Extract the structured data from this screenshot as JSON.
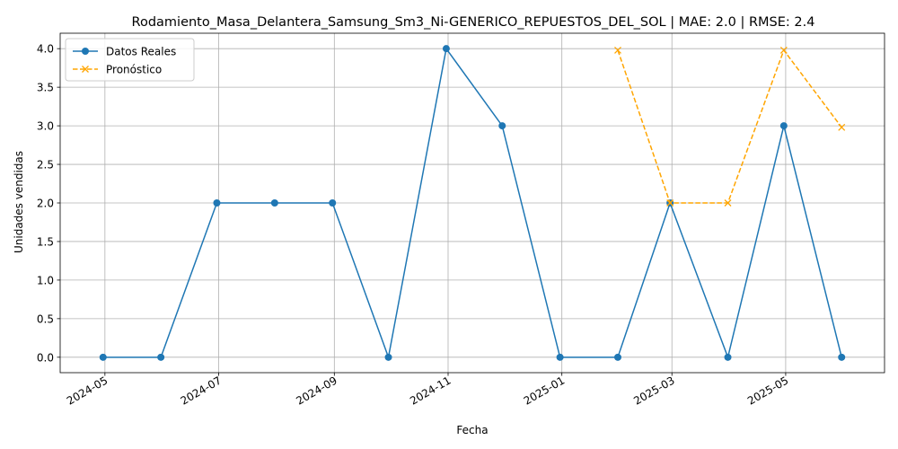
{
  "chart_data": {
    "type": "line",
    "title": "Rodamiento_Masa_Delantera_Samsung_Sm3_Ni-GENERICO_REPUESTOS_DEL_SOL | MAE: 2.0 | RMSE: 2.4",
    "xlabel": "Fecha",
    "ylabel": "Unidades vendidas",
    "xlim": [
      "2024-04-07",
      "2025-06-23"
    ],
    "ylim": [
      -0.2,
      4.2
    ],
    "grid": true,
    "legend_position": "top-left",
    "x_ticks": [
      "2024-05",
      "2024-07",
      "2024-09",
      "2024-11",
      "2025-01",
      "2025-03",
      "2025-05"
    ],
    "y_ticks": [
      "0.0",
      "0.5",
      "1.0",
      "1.5",
      "2.0",
      "2.5",
      "3.0",
      "3.5",
      "4.0"
    ],
    "series": [
      {
        "name": "Datos Reales",
        "color": "#1f77b4",
        "style": "solid",
        "marker": "circle",
        "x": [
          "2024-04-30",
          "2024-05-31",
          "2024-06-30",
          "2024-07-31",
          "2024-08-31",
          "2024-09-30",
          "2024-10-31",
          "2024-11-30",
          "2024-12-31",
          "2025-01-31",
          "2025-02-28",
          "2025-03-31",
          "2025-04-30",
          "2025-05-31"
        ],
        "values": [
          0,
          0,
          2,
          2,
          2,
          0,
          4,
          3,
          0,
          0,
          2,
          0,
          3,
          0
        ]
      },
      {
        "name": "Pronóstico",
        "color": "#ffa500",
        "style": "dashed",
        "marker": "x",
        "x": [
          "2025-01-31",
          "2025-02-28",
          "2025-03-31",
          "2025-04-30",
          "2025-05-31"
        ],
        "values": [
          3.98,
          2.0,
          2.0,
          3.98,
          2.98
        ]
      }
    ]
  }
}
